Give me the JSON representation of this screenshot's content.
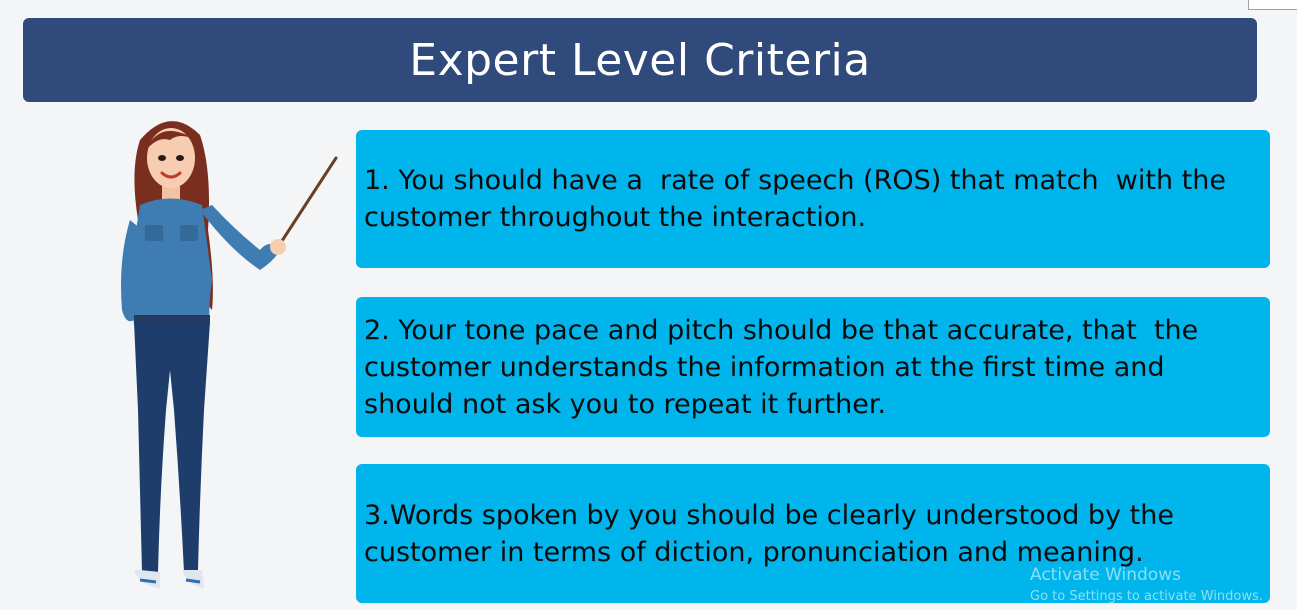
{
  "slide": {
    "title": "Expert Level Criteria",
    "criteria": [
      "1. You should have a  rate of speech (ROS) that match  with the customer throughout the interaction.",
      "2. Your tone pace and pitch should be that accurate, that  the customer understands the information at the first time and should not ask you to repeat it further.",
      "3.Words spoken by you should be clearly understood by the customer in terms of diction, pronunciation and meaning."
    ]
  },
  "watermark": {
    "title": "Activate Windows",
    "subtitle": "Go to Settings to activate Windows."
  },
  "colors": {
    "title_bar": "#2f4a7b",
    "criterion_box": "#00b5ec",
    "background": "#f4f5f6"
  },
  "icons": {
    "illustration": "teacher-with-pointer-illustration"
  }
}
